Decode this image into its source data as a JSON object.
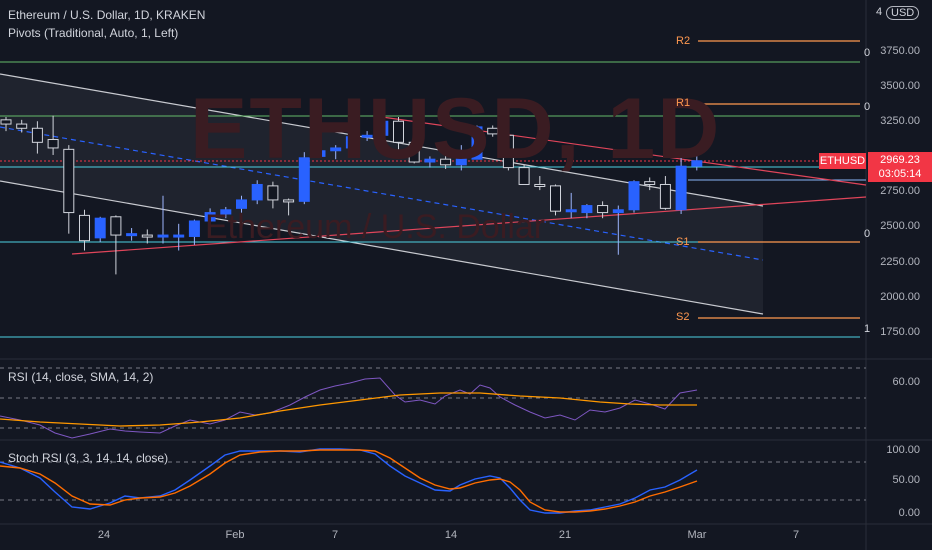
{
  "chart": {
    "title": "Ethereum / U.S. Dollar, 1D, KRAKEN",
    "pivots_legend": "Pivots (Traditional, Auto, 1, Left)",
    "watermark_symbol": "ETHUSD, 1D",
    "watermark_name": "Ethereum / U.S. Dollar",
    "currency_toggle": "USD",
    "top_axis_partial": "4",
    "symbol_badge": "ETHUSD",
    "last_price": "2969.23",
    "countdown": "03:05:14",
    "colors": {
      "background": "#131722",
      "up": "#2962ff",
      "down": "#e0e3eb",
      "alert": "#f23645",
      "pivot": "#ff9850"
    }
  },
  "price_axis": [
    "3750.00",
    "3500.00",
    "3250.00",
    "2750.00",
    "2500.00",
    "2250.00",
    "2000.00",
    "1750.00"
  ],
  "pivots": {
    "R2": "R2",
    "R1": "R1",
    "S1": "S1",
    "S2": "S2",
    "edge_labels": [
      "0",
      "0",
      "0",
      "1"
    ]
  },
  "time_axis": [
    "24",
    "Feb",
    "7",
    "14",
    "21",
    "Mar",
    "7"
  ],
  "rsi": {
    "legend": "RSI (14, close, SMA, 14, 2)",
    "axis": [
      "60.00"
    ]
  },
  "stoch": {
    "legend": "Stoch RSI (3, 3, 14, 14, close)",
    "axis": [
      "100.00",
      "50.00",
      "0.00"
    ]
  },
  "chart_data": {
    "type": "candlestick",
    "title": "Ethereum / U.S. Dollar, 1D, KRAKEN",
    "ylim": [
      1650,
      4000
    ],
    "yticks": [
      1750,
      2000,
      2250,
      2500,
      2750,
      3250,
      3500,
      3750
    ],
    "candles": [
      {
        "o": 3260,
        "h": 3280,
        "l": 3180,
        "c": 3230
      },
      {
        "o": 3230,
        "h": 3260,
        "l": 3170,
        "c": 3200
      },
      {
        "o": 3200,
        "h": 3250,
        "l": 3020,
        "c": 3100
      },
      {
        "o": 3120,
        "h": 3290,
        "l": 3010,
        "c": 3060
      },
      {
        "o": 3050,
        "h": 3080,
        "l": 2450,
        "c": 2600
      },
      {
        "o": 2580,
        "h": 2620,
        "l": 2330,
        "c": 2400
      },
      {
        "o": 2420,
        "h": 2570,
        "l": 2390,
        "c": 2560
      },
      {
        "o": 2570,
        "h": 2580,
        "l": 2160,
        "c": 2440
      },
      {
        "o": 2440,
        "h": 2490,
        "l": 2400,
        "c": 2450
      },
      {
        "o": 2440,
        "h": 2480,
        "l": 2380,
        "c": 2430
      },
      {
        "o": 2430,
        "h": 2720,
        "l": 2380,
        "c": 2440
      },
      {
        "o": 2430,
        "h": 2520,
        "l": 2330,
        "c": 2440
      },
      {
        "o": 2430,
        "h": 2550,
        "l": 2370,
        "c": 2540
      },
      {
        "o": 2540,
        "h": 2630,
        "l": 2540,
        "c": 2600
      },
      {
        "o": 2590,
        "h": 2640,
        "l": 2560,
        "c": 2620
      },
      {
        "o": 2630,
        "h": 2720,
        "l": 2600,
        "c": 2690
      },
      {
        "o": 2690,
        "h": 2830,
        "l": 2660,
        "c": 2800
      },
      {
        "o": 2790,
        "h": 2820,
        "l": 2630,
        "c": 2690
      },
      {
        "o": 2690,
        "h": 2700,
        "l": 2580,
        "c": 2680
      },
      {
        "o": 2680,
        "h": 3030,
        "l": 2660,
        "c": 2990
      },
      {
        "o": 3000,
        "h": 3070,
        "l": 2990,
        "c": 3040
      },
      {
        "o": 3040,
        "h": 3080,
        "l": 2980,
        "c": 3060
      },
      {
        "o": 3060,
        "h": 3200,
        "l": 3030,
        "c": 3140
      },
      {
        "o": 3150,
        "h": 3180,
        "l": 3110,
        "c": 3150
      },
      {
        "o": 3150,
        "h": 3270,
        "l": 3110,
        "c": 3250
      },
      {
        "o": 3250,
        "h": 3280,
        "l": 3050,
        "c": 3100
      },
      {
        "o": 3100,
        "h": 3130,
        "l": 2950,
        "c": 2960
      },
      {
        "o": 2960,
        "h": 3000,
        "l": 2920,
        "c": 2980
      },
      {
        "o": 2980,
        "h": 3010,
        "l": 2910,
        "c": 2940
      },
      {
        "o": 2940,
        "h": 3080,
        "l": 2900,
        "c": 2990
      },
      {
        "o": 2980,
        "h": 3220,
        "l": 2980,
        "c": 3210
      },
      {
        "o": 3200,
        "h": 3220,
        "l": 3140,
        "c": 3160
      },
      {
        "o": 3150,
        "h": 3160,
        "l": 2900,
        "c": 2920
      },
      {
        "o": 2920,
        "h": 2940,
        "l": 2800,
        "c": 2800
      },
      {
        "o": 2800,
        "h": 2860,
        "l": 2760,
        "c": 2790
      },
      {
        "o": 2790,
        "h": 2800,
        "l": 2580,
        "c": 2610
      },
      {
        "o": 2610,
        "h": 2740,
        "l": 2560,
        "c": 2620
      },
      {
        "o": 2600,
        "h": 2660,
        "l": 2560,
        "c": 2650
      },
      {
        "o": 2650,
        "h": 2680,
        "l": 2560,
        "c": 2600
      },
      {
        "o": 2600,
        "h": 2650,
        "l": 2300,
        "c": 2620
      },
      {
        "o": 2620,
        "h": 2830,
        "l": 2600,
        "c": 2820
      },
      {
        "o": 2820,
        "h": 2850,
        "l": 2760,
        "c": 2800
      },
      {
        "o": 2800,
        "h": 2860,
        "l": 2620,
        "c": 2630
      },
      {
        "o": 2620,
        "h": 2990,
        "l": 2590,
        "c": 2930
      },
      {
        "o": 2930,
        "h": 3030,
        "l": 2900,
        "c": 2969
      }
    ]
  }
}
